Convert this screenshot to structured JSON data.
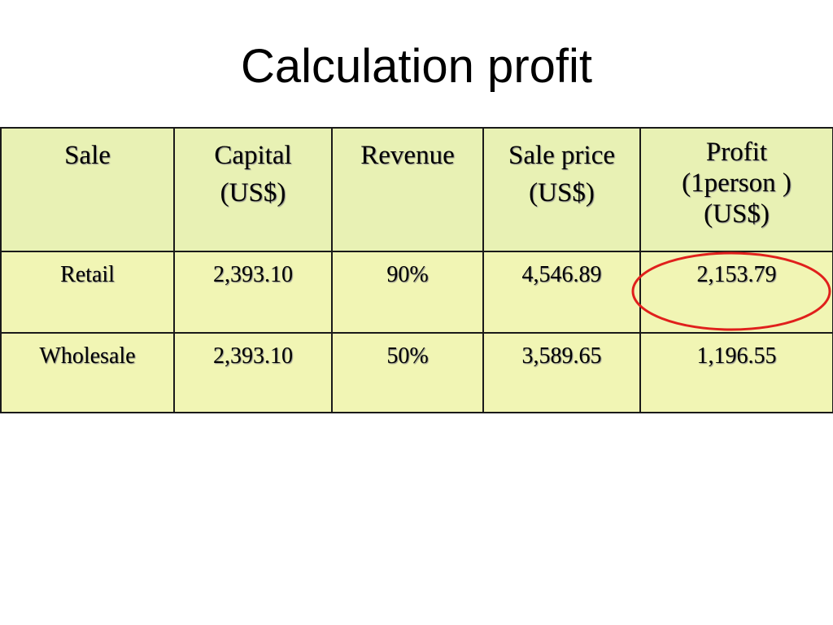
{
  "slide": {
    "title": "Calculation profit"
  },
  "table": {
    "headers": [
      {
        "line1": "Sale",
        "line2": "",
        "line3": ""
      },
      {
        "line1": "Capital",
        "line2": "(US$)",
        "line3": ""
      },
      {
        "line1": "Revenue",
        "line2": "",
        "line3": ""
      },
      {
        "line1": "Sale price",
        "line2": "(US$)",
        "line3": ""
      },
      {
        "line1": "Profit",
        "line2": "(1person )",
        "line3": "(US$)"
      }
    ],
    "rows": [
      {
        "sale": "Retail",
        "capital": "2,393.10",
        "revenue": "90%",
        "sale_price": "4,546.89",
        "profit": "2,153.79"
      },
      {
        "sale": "Wholesale",
        "capital": "2,393.10",
        "revenue": "50%",
        "sale_price": "3,589.65",
        "profit": "1,196.55"
      }
    ]
  },
  "colors": {
    "header_background": "#e8f1b4",
    "row_background": "#f1f5b4",
    "highlight_circle": "#e0201c"
  }
}
